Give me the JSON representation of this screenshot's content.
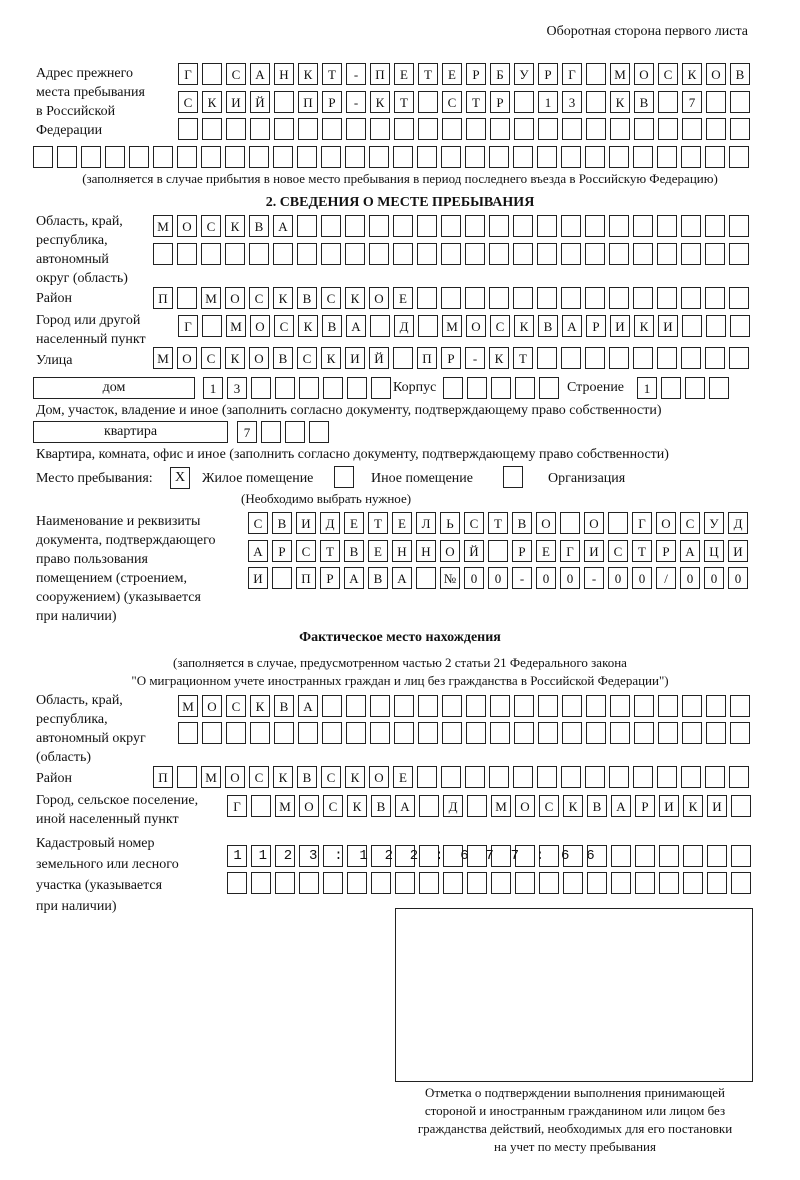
{
  "page_header": "Оборотная сторона первого листа",
  "prev_address": {
    "label": "Адрес прежнего\nместа пребывания\nв Российской\nФедерации",
    "rows": [
      "Г САНКТ-ПЕТЕРБУРГ МОСКОВ",
      "СКИЙ ПР-КТ СТР 13 КВ 7  ",
      "                        ",
      "                              "
    ],
    "note": "(заполняется в случае прибытия в новое место пребывания в период последнего въезда в Российскую Федерацию)"
  },
  "section2": {
    "title": "2. СВЕДЕНИЯ О МЕСТЕ ПРЕБЫВАНИЯ",
    "region_label": "Область, край,\nреспублика,\nавтономный\nокруг (область)",
    "region_rows": [
      "МОСКВА                   ",
      "                         "
    ],
    "district_label": "Район",
    "district_row": "П МОСКВСКОЕ              ",
    "city_label": "Город или другой\nнаселенный пункт",
    "city_row": "Г МОСКВА Д МОСКВАРИКИ   ",
    "street_label": "Улица",
    "street_row": "МОСКОВСКИЙ ПР-КТ         ",
    "house_type": "дом",
    "house_cells": "13      ",
    "korpus_label": "Корпус",
    "korpus_cells": "     ",
    "building_label": "Строение",
    "building_cells": "1   ",
    "house_note": "Дом, участок, владение и иное (заполнить согласно документу, подтверждающему право собственности)",
    "apt_type": "квартира",
    "apt_cells": "7   ",
    "apt_note": "Квартира, комната, офис и иное (заполнить согласно документу, подтверждающему право собственности)",
    "stay_label": "Место пребывания:",
    "stay_options": [
      {
        "label": "Жилое помещение",
        "mark": "X"
      },
      {
        "label": "Иное помещение",
        "mark": ""
      },
      {
        "label": "Организация",
        "mark": ""
      }
    ],
    "stay_note": "(Необходимо выбрать нужное)",
    "doc_label": "Наименование и реквизиты\nдокумента, подтверждающего\nправо пользования\nпомещением (строением,\nсооружением) (указывается\nпри наличии)",
    "doc_rows": [
      "СВИДЕТЕЛЬСТВО О ГОСУД",
      "АРСТВЕННОЙ РЕГИСТРАЦИ",
      "И ПРАВА №00-00-00/000"
    ]
  },
  "actual": {
    "title": "Фактическое место нахождения",
    "note_line1": "(заполняется в случае, предусмотренном частью 2 статьи 21 Федерального закона",
    "note_line2": "\"О миграционном учете иностранных граждан и лиц без гражданства в Российской Федерации\")",
    "region_label": "Область, край,\nреспублика,\nавтономный округ\n(область)",
    "region_rows": [
      "МОСКВА                  ",
      "                        "
    ],
    "district_label": "Район",
    "district_row": "П МОСКВСКОЕ              ",
    "city_label": "Город, сельское поселение,\nиной населенный пункт",
    "city_row": "Г МОСКВА Д МОСКВАРИКИ ",
    "cadastral_label": "Кадастровый номер\nземельного или лесного\nучастка (указывается\nпри наличии)",
    "cadastral_rows": [
      "1123:122:677:66       ",
      "                      "
    ]
  },
  "stamp": {
    "caption": "Отметка о подтверждении выполнения принимающей\nстороной и иностранным гражданином или лицом без\nгражданства действий, необходимых для его постановки\nна учет по месту пребывания"
  }
}
